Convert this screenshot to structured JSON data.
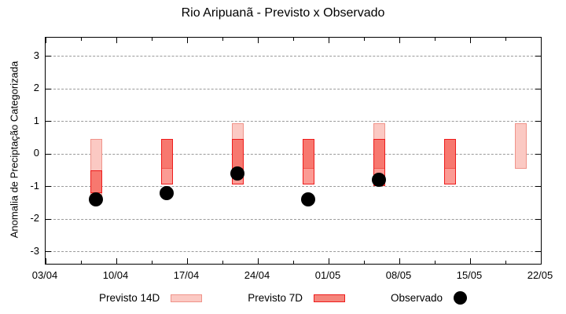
{
  "title": "Rio Aripuanã - Previsto x Observado",
  "ylabel": "Anomalia de Preciptação Categorizada",
  "legend": {
    "previsto_14d_label": "Previsto 14D",
    "previsto_7d_label": "Previsto 7D",
    "observado_label": "Observado"
  },
  "colors": {
    "light_fill": "#FBC9C3",
    "light_border": "#F0938A",
    "dark_fill": "#F7786F",
    "mid_fill": "#FB9B94",
    "seven_fill": "#F5867C",
    "red_border": "#EE1C1C",
    "dot": "#000000",
    "grid": "#9a9a9a"
  },
  "chart_data": {
    "type": "bar",
    "subtype": "range-bars-with-observations",
    "title": "Rio Aripuanã - Previsto x Observado",
    "xlabel": "",
    "ylabel": "Anomalia de Preciptação Categorizada",
    "x_tick_labels": [
      "03/04",
      "10/04",
      "17/04",
      "24/04",
      "01/05",
      "08/05",
      "15/05",
      "22/05"
    ],
    "x_tick_days": [
      0,
      7,
      14,
      21,
      28,
      35,
      42,
      49
    ],
    "minor_x_tick_days": [
      3.5,
      10.5,
      17.5,
      24.5,
      31.5,
      38.5,
      45.5
    ],
    "y_ticks": [
      3,
      2,
      1,
      0,
      -1,
      -2,
      -3
    ],
    "ylim": [
      -3.5,
      3.5
    ],
    "grid": "dashed horizontal at each y tick",
    "legend_position": "below plot",
    "series_legend": [
      "Previsto 14D",
      "Previsto 7D",
      "Observado"
    ],
    "clusters": [
      {
        "date": "08/04",
        "day": 5,
        "previsto_14d": [
          0.45,
          -1.3
        ],
        "previsto_7d": [
          -0.5,
          -1.2
        ],
        "observado": -1.4
      },
      {
        "date": "15/04",
        "day": 12,
        "previsto_14d": [
          0.45,
          -0.45
        ],
        "previsto_7d": [
          0.45,
          -0.95
        ],
        "observado": -1.2
      },
      {
        "date": "22/04",
        "day": 19,
        "previsto_14d": [
          0.95,
          -0.45
        ],
        "previsto_7d": [
          0.45,
          -0.95
        ],
        "observado": -0.6
      },
      {
        "date": "29/04",
        "day": 26,
        "previsto_14d": [
          0.45,
          -0.45
        ],
        "previsto_7d": [
          0.45,
          -0.95
        ],
        "observado": -1.4
      },
      {
        "date": "06/05",
        "day": 33,
        "previsto_14d": [
          0.95,
          -0.45
        ],
        "previsto_7d": [
          0.45,
          -1.0
        ],
        "observado": -0.8
      },
      {
        "date": "13/05",
        "day": 40,
        "previsto_14d": [
          0.45,
          -0.45
        ],
        "previsto_7d": [
          0.45,
          -0.95
        ],
        "observado": null
      },
      {
        "date": "20/05",
        "day": 47,
        "previsto_14d": [
          0.95,
          -0.45
        ],
        "previsto_7d": null,
        "observado": null
      }
    ]
  }
}
